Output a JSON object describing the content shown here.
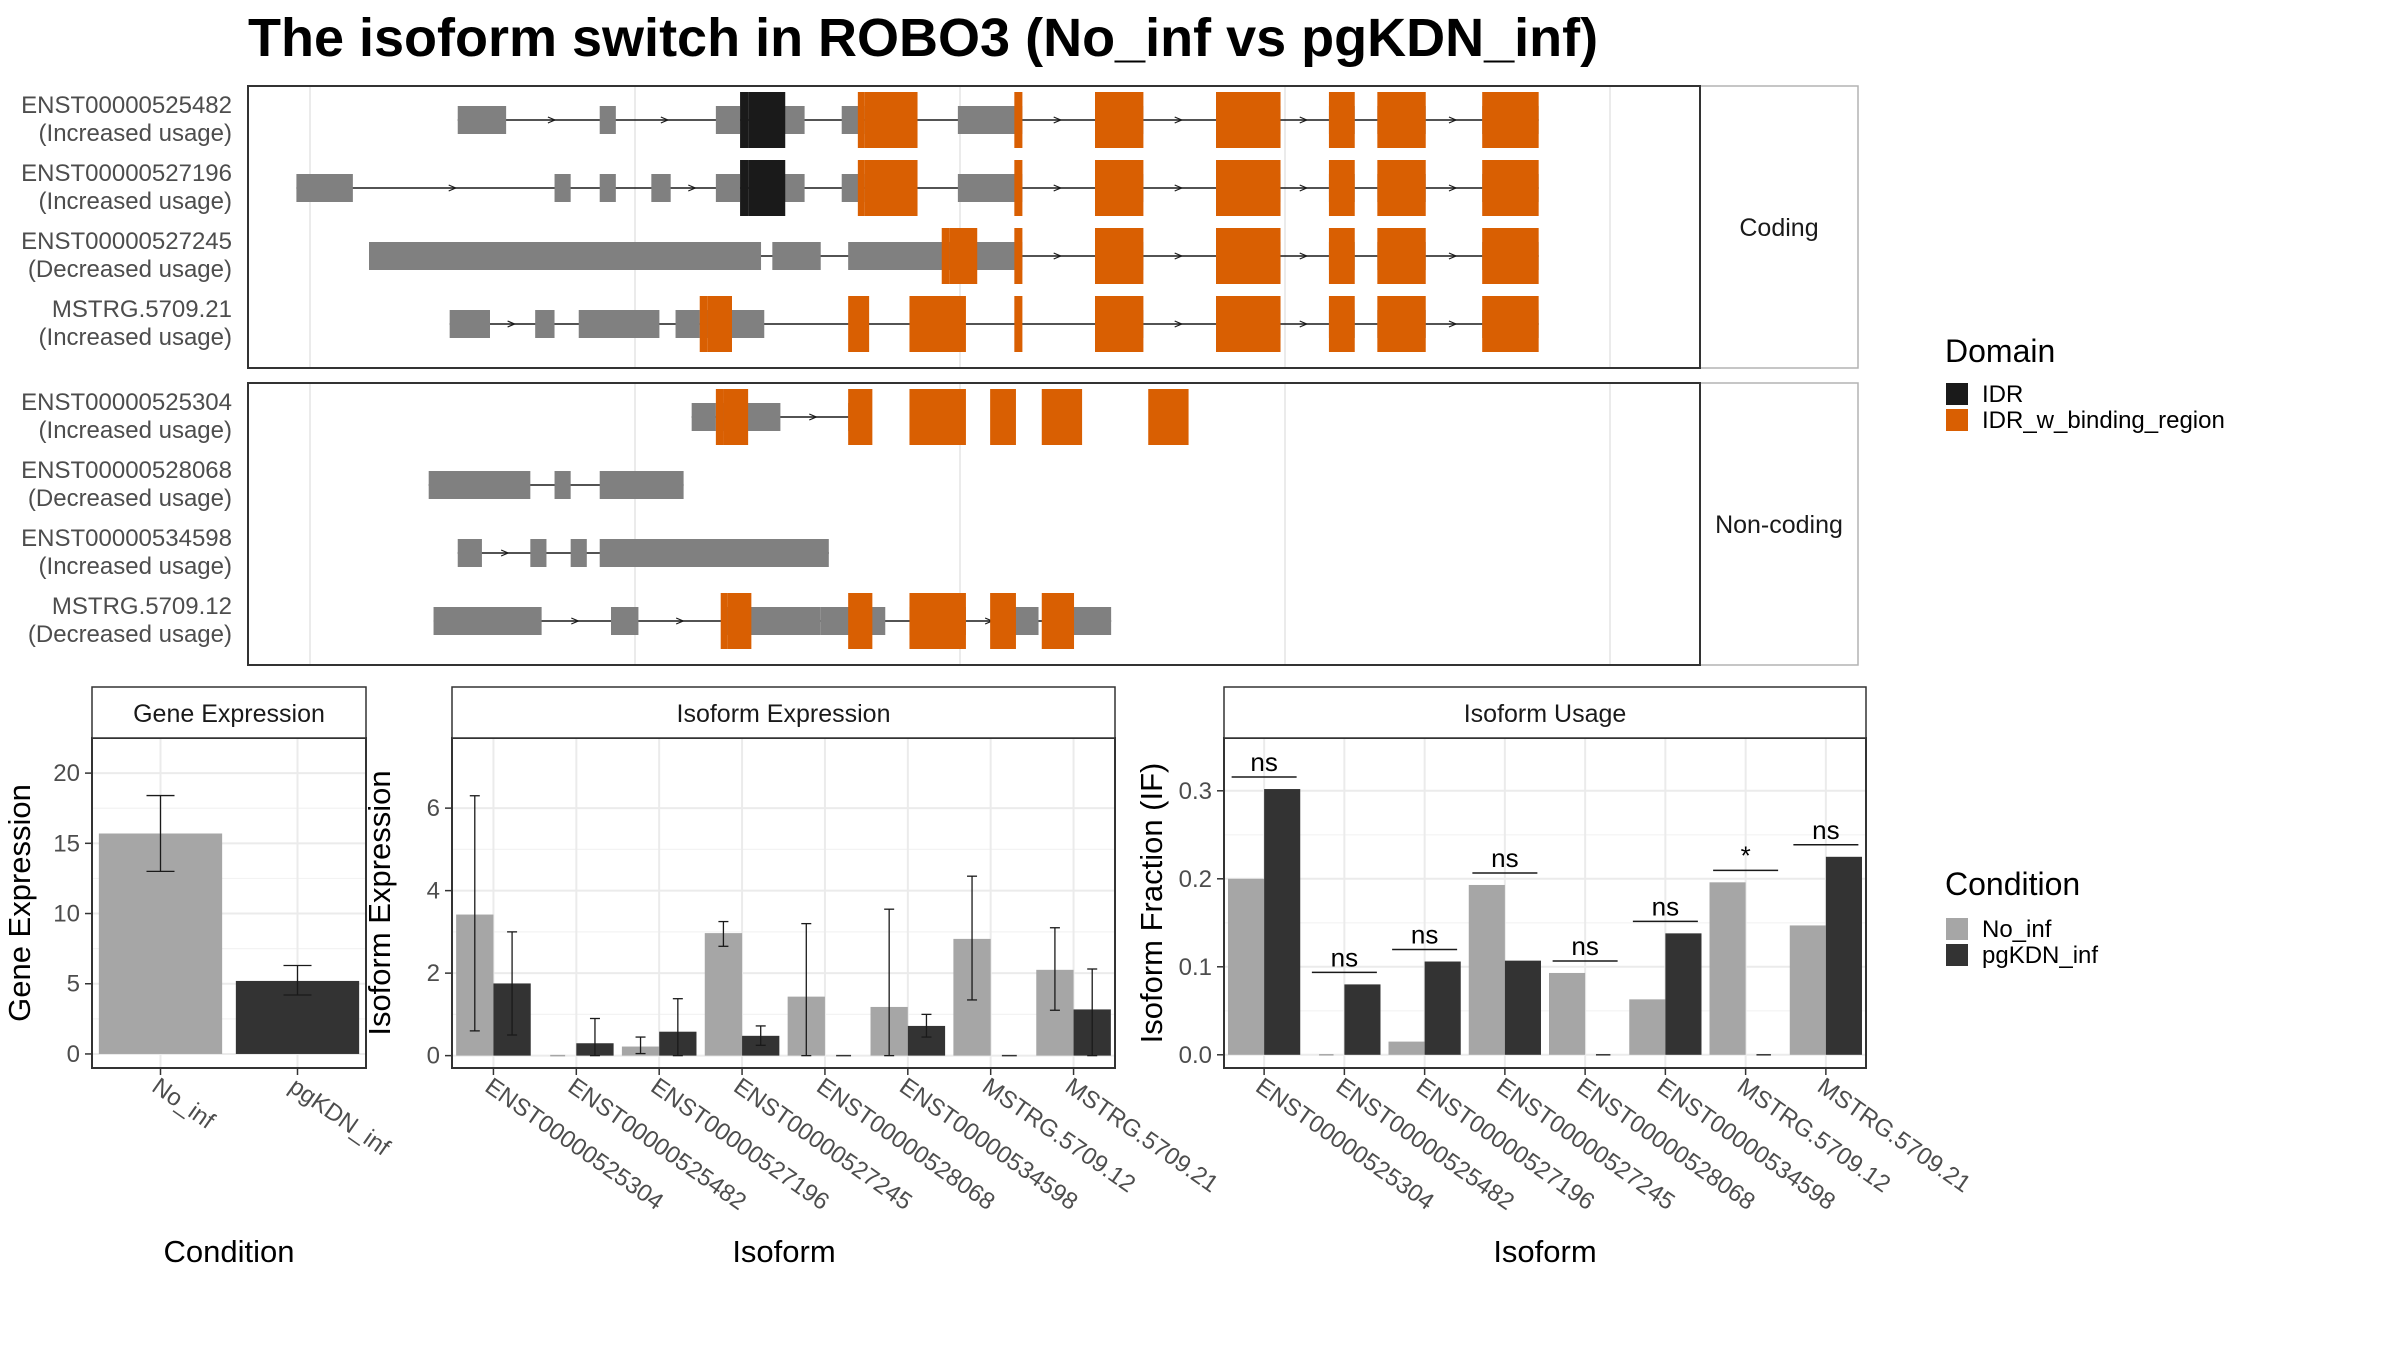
{
  "title": "The isoform switch in ROBO3 (No_inf vs pgKDN_inf)",
  "colors": {
    "exon": "#808080",
    "idr": "#1a1a1a",
    "idr_binding": "#d95f02",
    "no_inf": "#a6a6a6",
    "pgkdn_inf": "#333333",
    "grid": "#ebebeb",
    "panel_border": "#333333",
    "strip_border": "#b3b3b3"
  },
  "structure": {
    "facets": [
      {
        "label": "Coding",
        "isoforms": [
          {
            "name": "ENST00000525482",
            "usage": "(Increased usage)",
            "exons": [
              [
                230,
                260
              ],
              [
                318,
                328
              ],
              [
                390,
                405
              ],
              [
                425,
                445
              ],
              [
                468,
                482
              ],
              [
                540,
                580
              ],
              [
                625,
                655
              ],
              [
                700,
                740
              ],
              [
                770,
                786
              ],
              [
                800,
                830
              ],
              [
                865,
                900
              ]
            ],
            "domains": [
              [
                405,
                410,
                "IDR"
              ],
              [
                410,
                433,
                "IDR"
              ],
              [
                478,
                482,
                "IDR_w_binding_region"
              ],
              [
                482,
                515,
                "IDR_w_binding_region"
              ],
              [
                575,
                580,
                "IDR_w_binding_region"
              ],
              [
                625,
                655,
                "IDR_w_binding_region"
              ],
              [
                700,
                740,
                "IDR_w_binding_region"
              ],
              [
                770,
                786,
                "IDR_w_binding_region"
              ],
              [
                800,
                830,
                "IDR_w_binding_region"
              ],
              [
                865,
                900,
                "IDR_w_binding_region"
              ]
            ]
          },
          {
            "name": "ENST00000527196",
            "usage": "(Increased usage)",
            "exons": [
              [
                130,
                165
              ],
              [
                290,
                300
              ],
              [
                318,
                328
              ],
              [
                350,
                362
              ],
              [
                390,
                405
              ],
              [
                425,
                445
              ],
              [
                468,
                482
              ],
              [
                540,
                580
              ],
              [
                625,
                655
              ],
              [
                700,
                740
              ],
              [
                770,
                786
              ],
              [
                800,
                830
              ],
              [
                865,
                900
              ]
            ],
            "domains": [
              [
                405,
                410,
                "IDR"
              ],
              [
                410,
                433,
                "IDR"
              ],
              [
                478,
                482,
                "IDR_w_binding_region"
              ],
              [
                482,
                515,
                "IDR_w_binding_region"
              ],
              [
                575,
                580,
                "IDR_w_binding_region"
              ],
              [
                625,
                655,
                "IDR_w_binding_region"
              ],
              [
                700,
                740,
                "IDR_w_binding_region"
              ],
              [
                770,
                786,
                "IDR_w_binding_region"
              ],
              [
                800,
                830,
                "IDR_w_binding_region"
              ],
              [
                865,
                900,
                "IDR_w_binding_region"
              ]
            ]
          },
          {
            "name": "ENST00000527245",
            "usage": "(Decreased usage)",
            "exons": [
              [
                175,
                418
              ],
              [
                425,
                455
              ],
              [
                472,
                540
              ],
              [
                540,
                580
              ],
              [
                625,
                655
              ],
              [
                700,
                740
              ],
              [
                770,
                786
              ],
              [
                800,
                830
              ],
              [
                865,
                900
              ]
            ],
            "domains": [
              [
                530,
                535,
                "IDR_w_binding_region"
              ],
              [
                535,
                552,
                "IDR_w_binding_region"
              ],
              [
                575,
                580,
                "IDR_w_binding_region"
              ],
              [
                625,
                655,
                "IDR_w_binding_region"
              ],
              [
                700,
                740,
                "IDR_w_binding_region"
              ],
              [
                770,
                786,
                "IDR_w_binding_region"
              ],
              [
                800,
                830,
                "IDR_w_binding_region"
              ],
              [
                865,
                900,
                "IDR_w_binding_region"
              ]
            ]
          },
          {
            "name": "MSTRG.5709.21",
            "usage": "(Increased usage)",
            "exons": [
              [
                225,
                250
              ],
              [
                278,
                290
              ],
              [
                305,
                355
              ],
              [
                365,
                380
              ],
              [
                380,
                420
              ],
              [
                625,
                655
              ],
              [
                700,
                740
              ],
              [
                770,
                786
              ],
              [
                800,
                830
              ],
              [
                865,
                900
              ]
            ],
            "domains": [
              [
                380,
                385,
                "IDR_w_binding_region"
              ],
              [
                385,
                400,
                "IDR_w_binding_region"
              ],
              [
                472,
                485,
                "IDR_w_binding_region"
              ],
              [
                510,
                545,
                "IDR_w_binding_region"
              ],
              [
                575,
                580,
                "IDR_w_binding_region"
              ],
              [
                625,
                655,
                "IDR_w_binding_region"
              ],
              [
                700,
                740,
                "IDR_w_binding_region"
              ],
              [
                770,
                786,
                "IDR_w_binding_region"
              ],
              [
                800,
                830,
                "IDR_w_binding_region"
              ],
              [
                865,
                900,
                "IDR_w_binding_region"
              ]
            ]
          }
        ]
      },
      {
        "label": "Non-coding",
        "isoforms": [
          {
            "name": "ENST00000525304",
            "usage": "(Increased usage)",
            "exons": [
              [
                375,
                390
              ],
              [
                390,
                430
              ],
              [
                472,
                485
              ]
            ],
            "domains": [
              [
                390,
                395,
                "IDR_w_binding_region"
              ],
              [
                395,
                410,
                "IDR_w_binding_region"
              ],
              [
                472,
                487,
                "IDR_w_binding_region"
              ],
              [
                510,
                545,
                "IDR_w_binding_region"
              ],
              [
                560,
                576,
                "IDR_w_binding_region"
              ],
              [
                592,
                617,
                "IDR_w_binding_region"
              ],
              [
                658,
                683,
                "IDR_w_binding_region"
              ]
            ]
          },
          {
            "name": "ENST00000528068",
            "usage": "(Decreased usage)",
            "exons": [
              [
                212,
                275
              ],
              [
                290,
                300
              ],
              [
                318,
                370
              ]
            ],
            "domains": []
          },
          {
            "name": "ENST00000534598",
            "usage": "(Increased usage)",
            "exons": [
              [
                230,
                245
              ],
              [
                275,
                285
              ],
              [
                300,
                310
              ],
              [
                318,
                460
              ]
            ],
            "domains": []
          },
          {
            "name": "MSTRG.5709.12",
            "usage": "(Decreased usage)",
            "exons": [
              [
                215,
                282
              ],
              [
                325,
                342
              ],
              [
                395,
                455
              ],
              [
                455,
                495
              ],
              [
                510,
                545
              ],
              [
                575,
                590
              ],
              [
                610,
                635
              ]
            ],
            "domains": [
              [
                393,
                397,
                "IDR_w_binding_region"
              ],
              [
                397,
                412,
                "IDR_w_binding_region"
              ],
              [
                472,
                487,
                "IDR_w_binding_region"
              ],
              [
                510,
                545,
                "IDR_w_binding_region"
              ],
              [
                560,
                576,
                "IDR_w_binding_region"
              ],
              [
                592,
                612,
                "IDR_w_binding_region"
              ]
            ]
          }
        ]
      }
    ]
  },
  "legends": {
    "domain": {
      "title": "Domain",
      "entries": [
        "IDR",
        "IDR_w_binding_region"
      ]
    },
    "condition": {
      "title": "Condition",
      "entries": [
        "No_inf",
        "pgKDN_inf"
      ]
    }
  },
  "chart_data": [
    {
      "type": "bar",
      "title": "Gene Expression",
      "xlabel": "Condition",
      "ylabel": "Gene Expression",
      "categories": [
        "No_inf",
        "pgKDN_inf"
      ],
      "values": [
        15.7,
        5.2
      ],
      "errors": [
        [
          13.0,
          18.4
        ],
        [
          4.2,
          6.3
        ]
      ],
      "ylim": [
        -1,
        22.5
      ],
      "yticks": [
        0,
        5,
        10,
        15,
        20
      ]
    },
    {
      "type": "bar",
      "title": "Isoform Expression",
      "xlabel": "Isoform",
      "ylabel": "Isoform Expression",
      "categories": [
        "ENST00000525304",
        "ENST00000525482",
        "ENST00000527196",
        "ENST00000527245",
        "ENST00000528068",
        "ENST00000534598",
        "MSTRG.5709.12",
        "MSTRG.5709.21"
      ],
      "series": [
        {
          "name": "No_inf",
          "values": [
            3.42,
            0.0,
            0.22,
            2.97,
            1.43,
            1.18,
            2.83,
            2.08
          ],
          "errors": [
            [
              0.6,
              6.3
            ],
            null,
            [
              0.05,
              0.45
            ],
            [
              2.65,
              3.25
            ],
            [
              0.0,
              3.2
            ],
            [
              0.0,
              3.55
            ],
            [
              1.35,
              4.35
            ],
            [
              1.1,
              3.1
            ]
          ]
        },
        {
          "name": "pgKDN_inf",
          "values": [
            1.75,
            0.3,
            0.58,
            0.48,
            0.0,
            0.72,
            0.0,
            1.12
          ],
          "errors": [
            [
              0.5,
              3.0
            ],
            [
              0.0,
              0.9
            ],
            [
              0.0,
              1.38
            ],
            [
              0.25,
              0.72
            ],
            null,
            [
              0.45,
              1.0
            ],
            null,
            [
              0.0,
              2.1
            ]
          ]
        }
      ],
      "ylim": [
        -0.3,
        7.7
      ],
      "yticks": [
        0,
        2,
        4,
        6
      ]
    },
    {
      "type": "bar",
      "title": "Isoform Usage",
      "xlabel": "Isoform",
      "ylabel": "Isoform Fraction (IF)",
      "categories": [
        "ENST00000525304",
        "ENST00000525482",
        "ENST00000527196",
        "ENST00000527245",
        "ENST00000528068",
        "ENST00000534598",
        "MSTRG.5709.12",
        "MSTRG.5709.21"
      ],
      "series": [
        {
          "name": "No_inf",
          "values": [
            0.2,
            0.0,
            0.015,
            0.193,
            0.093,
            0.063,
            0.196,
            0.147
          ]
        },
        {
          "name": "pgKDN_inf",
          "values": [
            0.302,
            0.08,
            0.106,
            0.107,
            0.0,
            0.138,
            0.0,
            0.225
          ]
        }
      ],
      "significance": [
        "ns",
        "ns",
        "ns",
        "ns",
        "ns",
        "ns",
        "*",
        "ns"
      ],
      "ylim": [
        -0.015,
        0.36
      ],
      "yticks": [
        0.0,
        0.1,
        0.2,
        0.3
      ]
    }
  ]
}
